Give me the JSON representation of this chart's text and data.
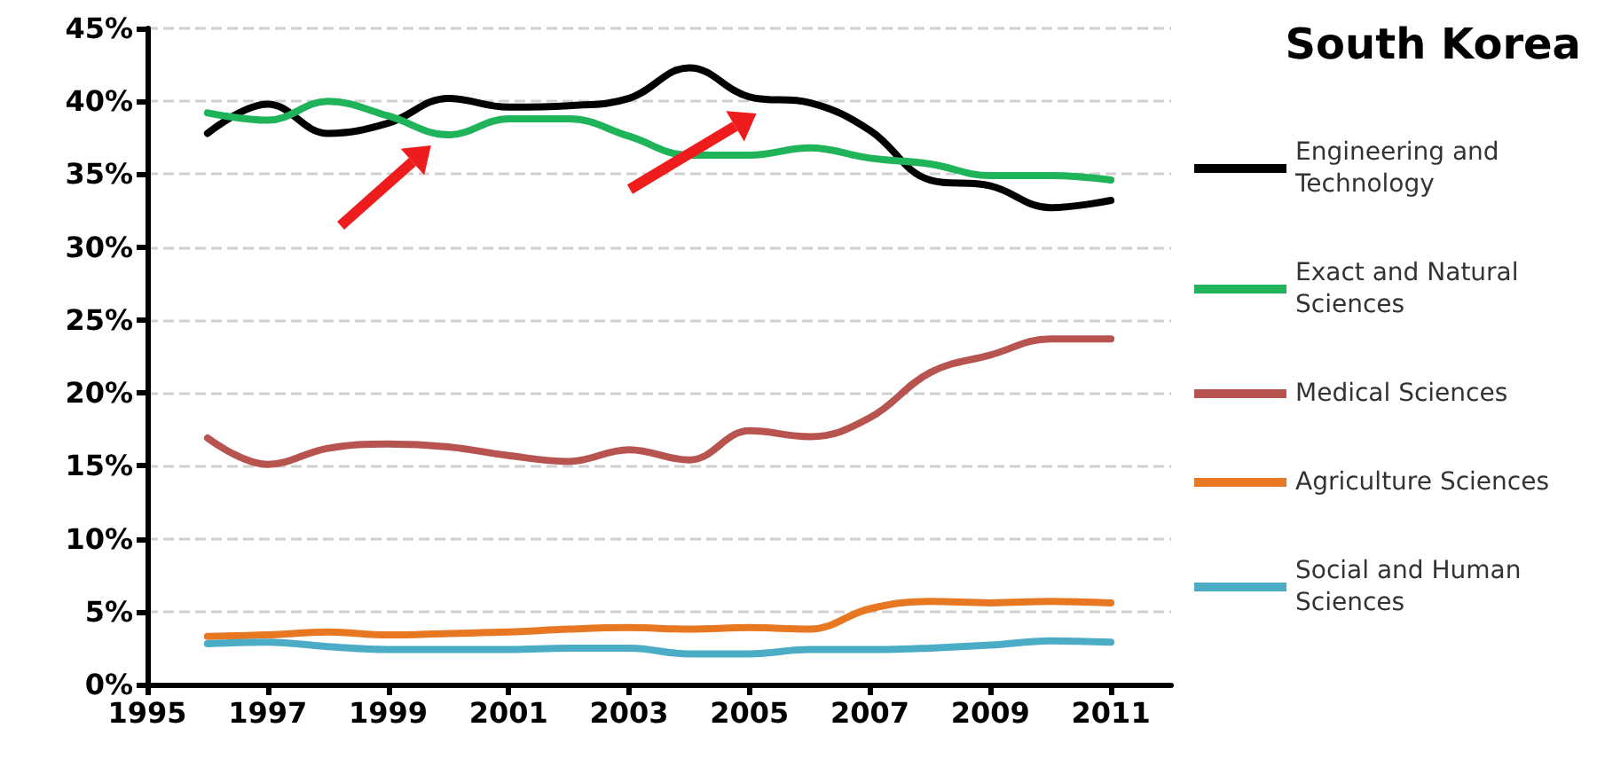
{
  "chart_data": {
    "type": "line",
    "title": "South Korea",
    "x": [
      1996,
      1997,
      1998,
      1999,
      2000,
      2001,
      2002,
      2003,
      2004,
      2005,
      2006,
      2007,
      2008,
      2009,
      2010,
      2011
    ],
    "series": [
      {
        "name": "Engineering and Technology",
        "color": "#000000",
        "values": [
          37.8,
          39.8,
          37.8,
          38.5,
          40.2,
          39.6,
          39.7,
          40.2,
          42.3,
          40.3,
          39.9,
          38.0,
          34.6,
          34.2,
          32.7,
          33.2
        ]
      },
      {
        "name": "Exact and Natural Sciences",
        "color": "#1fb35a",
        "values": [
          39.2,
          38.7,
          40.0,
          39.0,
          37.7,
          38.8,
          38.8,
          37.6,
          36.3,
          36.3,
          36.8,
          36.1,
          35.7,
          34.9,
          34.9,
          34.6
        ]
      },
      {
        "name": "Medical Sciences",
        "color": "#b85450",
        "values": [
          16.9,
          15.1,
          16.2,
          16.5,
          16.3,
          15.7,
          15.3,
          16.1,
          15.4,
          17.4,
          17.0,
          18.3,
          21.4,
          22.6,
          23.7,
          23.7
        ]
      },
      {
        "name": "Agriculture Sciences",
        "color": "#e87722",
        "values": [
          3.3,
          3.4,
          3.6,
          3.4,
          3.5,
          3.6,
          3.8,
          3.9,
          3.8,
          3.9,
          3.8,
          5.2,
          5.7,
          5.6,
          5.7,
          5.6
        ]
      },
      {
        "name": "Social and Human Sciences",
        "color": "#4bacc6",
        "values": [
          2.8,
          2.9,
          2.6,
          2.4,
          2.4,
          2.4,
          2.5,
          2.5,
          2.1,
          2.1,
          2.4,
          2.4,
          2.5,
          2.7,
          3.0,
          2.9
        ]
      }
    ],
    "xlim": [
      1995,
      2012
    ],
    "xticks": [
      1995,
      1997,
      1999,
      2001,
      2003,
      2005,
      2007,
      2009,
      2011
    ],
    "ylim": [
      0,
      45
    ],
    "yticks": [
      {
        "value": 0,
        "label": "0%"
      },
      {
        "value": 5,
        "label": "5%"
      },
      {
        "value": 10,
        "label": "10%"
      },
      {
        "value": 15,
        "label": "15%"
      },
      {
        "value": 20,
        "label": "20%"
      },
      {
        "value": 25,
        "label": "25%"
      },
      {
        "value": 30,
        "label": "30%"
      },
      {
        "value": 35,
        "label": "35%"
      },
      {
        "value": 40,
        "label": "40%"
      },
      {
        "value": 45,
        "label": "45%"
      }
    ],
    "grid": "y",
    "legend": "right",
    "marker": "none",
    "line_style": "solid"
  }
}
